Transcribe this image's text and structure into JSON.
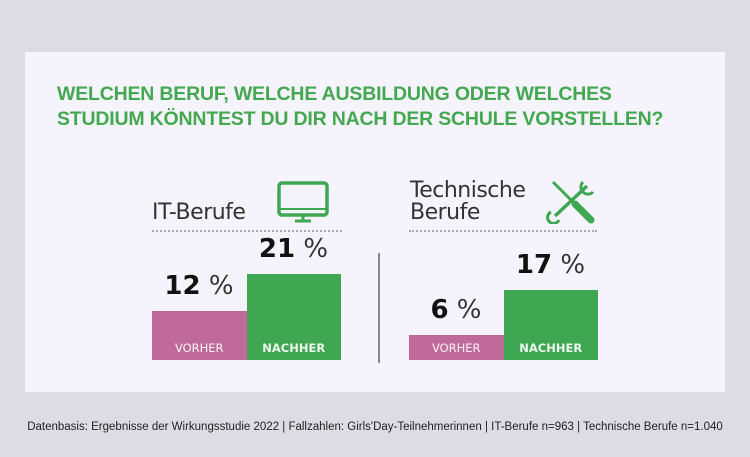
{
  "title_lines": [
    "WELCHEN BERUF, WELCHE AUSBILDUNG ODER WELCHES",
    "STUDIUM KÖNNTEST DU DIR NACH DER SCHULE VORSTELLEN?"
  ],
  "footer": "Datenbasis: Ergebnisse der Wirkungsstudie 2022 | Fallzahlen: Girls'Day-Teilnehmerinnen | IT-Berufe n=963 | Technische Berufe n=1.040",
  "colors": {
    "vorher": "#c06a9b",
    "nachher": "#3fa651",
    "title": "#43a84f"
  },
  "icons": [
    "monitor-icon",
    "wrench-screwdriver-icon"
  ],
  "chart_data": [
    {
      "type": "bar",
      "title": "IT-Berufe",
      "categories": [
        "VORHER",
        "NACHHER"
      ],
      "values": [
        12,
        21
      ],
      "labels": [
        "12",
        "21"
      ],
      "unit": "%"
    },
    {
      "type": "bar",
      "title_lines": [
        "Technische",
        "Berufe"
      ],
      "categories": [
        "VORHER",
        "NACHHER"
      ],
      "values": [
        6,
        17
      ],
      "labels": [
        "6",
        "17"
      ],
      "unit": "%"
    }
  ]
}
